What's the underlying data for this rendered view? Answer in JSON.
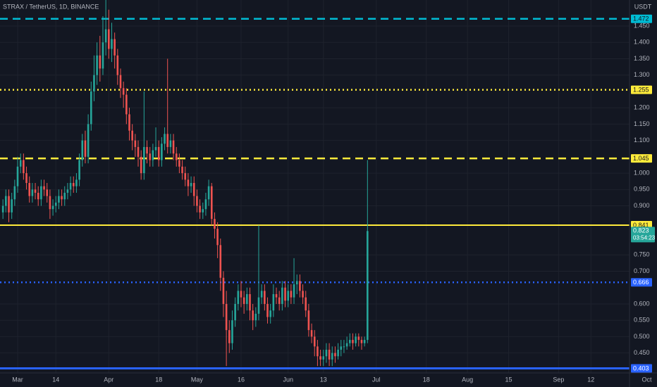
{
  "chart_data": {
    "type": "candlestick",
    "title": "STRAX / TetherUS, 1D, BINANCE",
    "currency": "USDT",
    "countdown": "03:54:23",
    "up_color": "#26a69a",
    "down_color": "#ef5350",
    "x": [
      -5,
      -4,
      -3,
      -2,
      -1,
      0,
      1,
      2,
      3,
      4,
      5,
      6,
      7,
      8,
      9,
      10,
      11,
      12,
      13,
      14,
      15,
      16,
      17,
      18,
      19,
      20,
      21,
      22,
      23,
      24,
      25,
      26,
      27,
      28,
      29,
      30,
      31,
      32,
      33,
      34,
      35,
      36,
      37,
      38,
      39,
      40,
      41,
      42,
      43,
      44,
      45,
      46,
      47,
      48,
      49,
      50,
      51,
      52,
      53,
      54,
      55,
      56,
      57,
      58,
      59,
      60,
      61,
      62,
      63,
      64,
      65,
      66,
      67,
      68,
      69,
      70,
      71,
      72,
      73,
      74,
      75,
      76,
      77,
      78,
      79,
      80,
      81,
      82,
      83,
      84,
      85,
      86,
      87,
      88,
      89,
      90,
      91,
      92,
      93,
      94,
      95,
      96,
      97,
      98,
      99,
      100,
      101,
      102,
      103,
      104,
      105,
      106,
      107,
      108,
      109,
      110,
      111,
      112,
      113,
      114,
      115,
      116,
      117,
      118,
      119
    ],
    "open": [
      0.88,
      0.9,
      0.93,
      0.88,
      0.92,
      0.96,
      1.02,
      1.04,
      1.0,
      0.97,
      0.93,
      0.95,
      0.94,
      0.92,
      0.96,
      0.95,
      0.93,
      0.89,
      0.9,
      0.91,
      0.93,
      0.92,
      0.94,
      0.95,
      0.97,
      0.96,
      0.98,
      1.04,
      1.1,
      1.05,
      1.15,
      1.25,
      1.3,
      1.36,
      1.32,
      1.4,
      1.44,
      1.38,
      1.41,
      1.36,
      1.3,
      1.26,
      1.24,
      1.18,
      1.13,
      1.1,
      1.08,
      1.05,
      1.0,
      1.08,
      1.06,
      1.04,
      1.07,
      1.08,
      1.04,
      1.09,
      1.12,
      1.08,
      1.1,
      1.06,
      1.04,
      1.02,
      1.0,
      0.98,
      0.96,
      0.97,
      0.93,
      0.9,
      0.88,
      0.89,
      0.92,
      0.96,
      0.86,
      0.83,
      0.78,
      0.68,
      0.6,
      0.52,
      0.48,
      0.55,
      0.6,
      0.64,
      0.62,
      0.6,
      0.63,
      0.58,
      0.55,
      0.57,
      0.62,
      0.64,
      0.6,
      0.56,
      0.58,
      0.63,
      0.62,
      0.6,
      0.65,
      0.61,
      0.64,
      0.62,
      0.66,
      0.67,
      0.64,
      0.62,
      0.58,
      0.52,
      0.5,
      0.47,
      0.44,
      0.43,
      0.44,
      0.46,
      0.43,
      0.45,
      0.44,
      0.46,
      0.47,
      0.47,
      0.48,
      0.49,
      0.48,
      0.5,
      0.49,
      0.48,
      0.49
    ],
    "high": [
      0.92,
      0.95,
      0.95,
      0.94,
      0.98,
      1.05,
      1.06,
      1.06,
      1.02,
      0.99,
      0.97,
      0.97,
      0.96,
      0.98,
      0.98,
      0.97,
      0.95,
      0.92,
      0.93,
      0.95,
      0.95,
      0.96,
      0.97,
      0.99,
      0.99,
      1.0,
      1.06,
      1.12,
      1.13,
      1.18,
      1.28,
      1.36,
      1.4,
      1.42,
      1.48,
      1.53,
      1.5,
      1.46,
      1.43,
      1.38,
      1.32,
      1.28,
      1.26,
      1.2,
      1.15,
      1.12,
      1.1,
      1.07,
      1.25,
      1.1,
      1.08,
      1.09,
      1.14,
      1.1,
      1.11,
      1.14,
      1.35,
      1.12,
      1.12,
      1.08,
      1.06,
      1.04,
      1.02,
      1.0,
      0.99,
      0.99,
      0.95,
      0.92,
      0.91,
      0.94,
      0.98,
      0.97,
      0.88,
      0.85,
      0.8,
      0.7,
      0.64,
      0.55,
      0.58,
      0.62,
      0.66,
      0.67,
      0.64,
      0.65,
      0.65,
      0.6,
      0.59,
      0.84,
      0.66,
      0.66,
      0.62,
      0.6,
      0.66,
      0.65,
      0.64,
      0.67,
      0.67,
      0.66,
      0.66,
      0.74,
      0.69,
      0.69,
      0.66,
      0.64,
      0.6,
      0.54,
      0.52,
      0.49,
      0.46,
      0.46,
      0.48,
      0.48,
      0.47,
      0.47,
      0.48,
      0.49,
      0.49,
      0.5,
      0.51,
      0.51,
      0.51,
      0.51,
      0.5,
      0.5,
      1.04
    ],
    "low": [
      0.86,
      0.88,
      0.85,
      0.86,
      0.9,
      0.94,
      1.0,
      0.98,
      0.95,
      0.91,
      0.91,
      0.92,
      0.9,
      0.9,
      0.93,
      0.91,
      0.86,
      0.87,
      0.88,
      0.89,
      0.9,
      0.9,
      0.92,
      0.93,
      0.94,
      0.94,
      0.96,
      1.02,
      1.03,
      1.03,
      1.13,
      1.22,
      1.27,
      1.28,
      1.3,
      1.36,
      1.35,
      1.34,
      1.32,
      1.27,
      1.23,
      1.2,
      1.15,
      1.1,
      1.07,
      1.05,
      1.02,
      0.98,
      0.98,
      1.03,
      1.02,
      1.02,
      1.05,
      1.02,
      1.02,
      1.07,
      1.06,
      1.06,
      1.04,
      1.02,
      1.0,
      0.98,
      0.96,
      0.93,
      0.94,
      0.9,
      0.88,
      0.86,
      0.86,
      0.87,
      0.9,
      0.84,
      0.8,
      0.74,
      0.64,
      0.56,
      0.41,
      0.45,
      0.46,
      0.53,
      0.58,
      0.59,
      0.57,
      0.58,
      0.55,
      0.52,
      0.53,
      0.55,
      0.6,
      0.58,
      0.54,
      0.54,
      0.56,
      0.6,
      0.58,
      0.58,
      0.59,
      0.59,
      0.6,
      0.6,
      0.63,
      0.62,
      0.6,
      0.56,
      0.5,
      0.48,
      0.44,
      0.41,
      0.41,
      0.41,
      0.42,
      0.41,
      0.41,
      0.42,
      0.43,
      0.44,
      0.45,
      0.46,
      0.47,
      0.46,
      0.47,
      0.47,
      0.46,
      0.47,
      0.48
    ],
    "close": [
      0.9,
      0.93,
      0.88,
      0.92,
      0.96,
      1.02,
      1.04,
      1.0,
      0.97,
      0.93,
      0.95,
      0.94,
      0.92,
      0.96,
      0.95,
      0.93,
      0.89,
      0.9,
      0.91,
      0.93,
      0.92,
      0.94,
      0.95,
      0.97,
      0.96,
      0.98,
      1.04,
      1.1,
      1.05,
      1.15,
      1.25,
      1.3,
      1.36,
      1.32,
      1.4,
      1.44,
      1.38,
      1.41,
      1.36,
      1.3,
      1.26,
      1.24,
      1.18,
      1.13,
      1.1,
      1.08,
      1.05,
      1.0,
      1.08,
      1.06,
      1.04,
      1.07,
      1.08,
      1.04,
      1.09,
      1.12,
      1.08,
      1.1,
      1.06,
      1.04,
      1.02,
      1.0,
      0.98,
      0.96,
      0.97,
      0.93,
      0.9,
      0.88,
      0.89,
      0.92,
      0.96,
      0.86,
      0.83,
      0.78,
      0.68,
      0.6,
      0.52,
      0.48,
      0.55,
      0.6,
      0.64,
      0.62,
      0.6,
      0.63,
      0.58,
      0.55,
      0.57,
      0.62,
      0.64,
      0.6,
      0.56,
      0.58,
      0.63,
      0.62,
      0.6,
      0.65,
      0.61,
      0.64,
      0.62,
      0.66,
      0.67,
      0.64,
      0.62,
      0.58,
      0.52,
      0.5,
      0.47,
      0.44,
      0.43,
      0.44,
      0.46,
      0.43,
      0.45,
      0.44,
      0.46,
      0.47,
      0.47,
      0.48,
      0.49,
      0.48,
      0.5,
      0.49,
      0.48,
      0.49,
      0.823
    ],
    "levels": [
      {
        "price": 1.472,
        "color": "#00bcd4",
        "style": "dashed"
      },
      {
        "price": 1.255,
        "color": "#ffeb3b",
        "style": "dotted"
      },
      {
        "price": 1.045,
        "color": "#ffeb3b",
        "style": "dashed"
      },
      {
        "price": 0.841,
        "color": "#ffeb3b",
        "style": "solid"
      },
      {
        "price": 0.666,
        "color": "#2962ff",
        "style": "dotted"
      },
      {
        "price": 0.403,
        "color": "#2962ff",
        "style": "solid"
      }
    ],
    "xlim": [
      -6,
      214
    ],
    "xticks": [
      {
        "value": 0,
        "label": "Mar"
      },
      {
        "value": 13,
        "label": "14"
      },
      {
        "value": 31,
        "label": "Apr"
      },
      {
        "value": 48,
        "label": "18"
      },
      {
        "value": 61,
        "label": "May"
      },
      {
        "value": 76,
        "label": "16"
      },
      {
        "value": 92,
        "label": "Jun"
      },
      {
        "value": 104,
        "label": "13"
      },
      {
        "value": 122,
        "label": "Jul"
      },
      {
        "value": 139,
        "label": "18"
      },
      {
        "value": 153,
        "label": "Aug"
      },
      {
        "value": 167,
        "label": "15"
      },
      {
        "value": 184,
        "label": "Sep"
      },
      {
        "value": 195,
        "label": "12"
      },
      {
        "value": 214,
        "label": "Oct"
      }
    ],
    "ylim": [
      0.389,
      1.5296
    ],
    "yticks": [
      {
        "value": 0.45,
        "label": "0.450"
      },
      {
        "value": 0.5,
        "label": "0.500"
      },
      {
        "value": 0.55,
        "label": "0.550"
      },
      {
        "value": 0.6,
        "label": "0.600"
      },
      {
        "value": 0.7,
        "label": "0.700"
      },
      {
        "value": 0.75,
        "label": "0.750"
      },
      {
        "value": 0.9,
        "label": "0.900"
      },
      {
        "value": 0.95,
        "label": "0.950"
      },
      {
        "value": 1.0,
        "label": "1.000"
      },
      {
        "value": 1.1,
        "label": "1.100"
      },
      {
        "value": 1.15,
        "label": "1.150"
      },
      {
        "value": 1.2,
        "label": "1.200"
      },
      {
        "value": 1.3,
        "label": "1.300"
      },
      {
        "value": 1.35,
        "label": "1.350"
      },
      {
        "value": 1.4,
        "label": "1.400"
      },
      {
        "value": 1.45,
        "label": "1.450"
      }
    ],
    "grid": true
  }
}
